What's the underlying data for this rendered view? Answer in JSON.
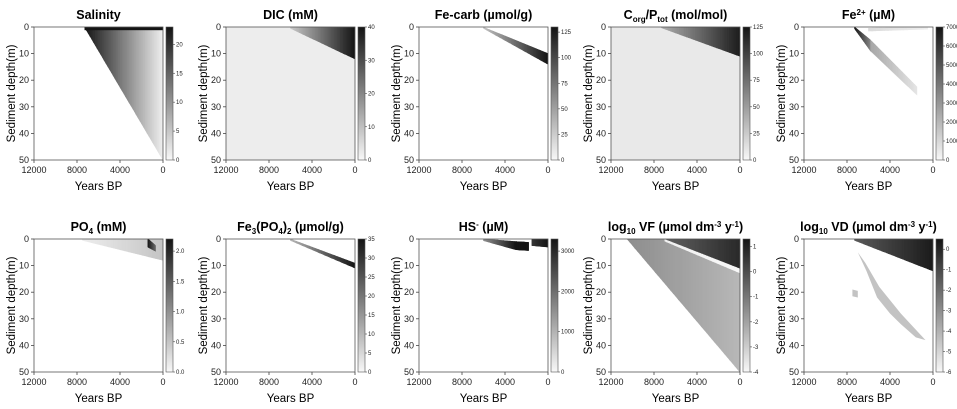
{
  "figure": {
    "xlabel": "Years BP",
    "ylabel": "Sediment depth(m)"
  },
  "chart_data": [
    {
      "type": "heatmap",
      "id": "salinity",
      "title": "Salinity",
      "title_parts": [
        {
          "t": "Salinity"
        }
      ],
      "x": [
        12000,
        8000,
        4000,
        0
      ],
      "xlim": [
        12000,
        0
      ],
      "y": [
        0,
        10,
        20,
        30,
        40,
        50
      ],
      "ylim": [
        50,
        0
      ],
      "colorbar": {
        "ticks": [
          0,
          5,
          10,
          15,
          20
        ],
        "range": [
          0,
          23
        ]
      },
      "features": [
        {
          "kind": "wedge",
          "x0": 7300,
          "x1": 0,
          "ytop0": 0,
          "ybot0": 0,
          "ytop1": 0,
          "ybot1": 50,
          "v0": 23,
          "v1": 1
        },
        {
          "kind": "rect",
          "x0": 7300,
          "x1": 0,
          "y0": 0,
          "y1": 1.2,
          "v": 23
        }
      ]
    },
    {
      "type": "heatmap",
      "id": "dic",
      "title": "DIC (mM)",
      "title_parts": [
        {
          "t": "DIC (mM)"
        }
      ],
      "x": [
        12000,
        8000,
        4000,
        0
      ],
      "xlim": [
        12000,
        0
      ],
      "y": [
        0,
        10,
        20,
        30,
        40,
        50
      ],
      "ylim": [
        50,
        0
      ],
      "colorbar": {
        "ticks": [
          0,
          10,
          20,
          30,
          40
        ],
        "range": [
          0,
          40
        ]
      },
      "features": [
        {
          "kind": "rect",
          "x0": 12000,
          "x1": 0,
          "y0": 0,
          "y1": 50,
          "v": 2
        },
        {
          "kind": "wedge",
          "x0": 6000,
          "x1": 0,
          "ytop0": 0,
          "ybot0": 0.5,
          "ytop1": 0,
          "ybot1": 12,
          "v0": 8,
          "v1": 40
        }
      ]
    },
    {
      "type": "heatmap",
      "id": "fecarb",
      "title": "Fe-carb (µmol/g)",
      "title_parts": [
        {
          "t": "Fe-carb (µmol/g)"
        }
      ],
      "x": [
        12000,
        8000,
        4000,
        0
      ],
      "xlim": [
        12000,
        0
      ],
      "y": [
        0,
        10,
        20,
        30,
        40,
        50
      ],
      "ylim": [
        50,
        0
      ],
      "colorbar": {
        "ticks": [
          0,
          25,
          50,
          75,
          100,
          125
        ],
        "range": [
          0,
          130
        ]
      },
      "features": [
        {
          "kind": "band",
          "x0": 6000,
          "x1": 0,
          "yc0": 0.3,
          "yc1": 12,
          "w0": 0.4,
          "w1": 4,
          "v0": 30,
          "v1": 130
        }
      ]
    },
    {
      "type": "heatmap",
      "id": "corg",
      "title": "Corg/Ptot (mol/mol)",
      "title_parts": [
        {
          "t": "C"
        },
        {
          "t": "org",
          "sub": true
        },
        {
          "t": "/P"
        },
        {
          "t": "tot",
          "sub": true
        },
        {
          "t": " (mol/mol)"
        }
      ],
      "x": [
        12000,
        8000,
        4000,
        0
      ],
      "xlim": [
        12000,
        0
      ],
      "y": [
        0,
        10,
        20,
        30,
        40,
        50
      ],
      "ylim": [
        50,
        0
      ],
      "colorbar": {
        "ticks": [
          0,
          25,
          50,
          75,
          100,
          125
        ],
        "range": [
          0,
          125
        ]
      },
      "features": [
        {
          "kind": "rect",
          "x0": 12000,
          "x1": 0,
          "y0": 0,
          "y1": 50,
          "v": 8
        },
        {
          "kind": "wedge",
          "x0": 7300,
          "x1": 0,
          "ytop0": 0,
          "ybot0": 0.3,
          "ytop1": 0,
          "ybot1": 11,
          "v0": 40,
          "v1": 120
        }
      ]
    },
    {
      "type": "heatmap",
      "id": "fe2",
      "title": "Fe2+ (µM)",
      "title_parts": [
        {
          "t": "Fe"
        },
        {
          "t": "2+",
          "sup": true
        },
        {
          "t": " (µM)"
        }
      ],
      "x": [
        12000,
        8000,
        4000,
        0
      ],
      "xlim": [
        12000,
        0
      ],
      "y": [
        0,
        10,
        20,
        30,
        40,
        50
      ],
      "ylim": [
        50,
        0
      ],
      "colorbar": {
        "ticks": [
          0,
          1000,
          2000,
          3000,
          4000,
          5000,
          6000,
          7000
        ],
        "range": [
          0,
          7000
        ]
      },
      "features": [
        {
          "kind": "band",
          "x0": 7300,
          "x1": 5800,
          "yc0": 0.3,
          "yc1": 7,
          "w0": 0.5,
          "w1": 4,
          "v0": 7000,
          "v1": 3500
        },
        {
          "kind": "band",
          "x0": 5800,
          "x1": 1500,
          "yc0": 7,
          "yc1": 24,
          "w0": 4,
          "w1": 3,
          "v0": 2500,
          "v1": 600
        },
        {
          "kind": "band",
          "x0": 6000,
          "x1": 500,
          "yc0": 1,
          "yc1": 0.4,
          "w0": 1,
          "w1": 0.8,
          "v0": 900,
          "v1": 300
        }
      ]
    },
    {
      "type": "heatmap",
      "id": "po4",
      "title": "PO4 (mM)",
      "title_parts": [
        {
          "t": "PO"
        },
        {
          "t": "4",
          "sub": true
        },
        {
          "t": " (mM)"
        }
      ],
      "x": [
        12000,
        8000,
        4000,
        0
      ],
      "xlim": [
        12000,
        0
      ],
      "y": [
        0,
        10,
        20,
        30,
        40,
        50
      ],
      "ylim": [
        50,
        0
      ],
      "colorbar": {
        "ticks": [
          0.0,
          0.5,
          1.0,
          1.5,
          2.0
        ],
        "range": [
          0,
          2.2
        ]
      },
      "features": [
        {
          "kind": "wedge",
          "x0": 7500,
          "x1": 0,
          "ytop0": 0,
          "ybot0": 0.5,
          "ytop1": 0,
          "ybot1": 8,
          "v0": 0.1,
          "v1": 0.5
        },
        {
          "kind": "band",
          "x0": 1400,
          "x1": 700,
          "yc0": 1.5,
          "yc1": 3.5,
          "w0": 3,
          "w1": 2,
          "v0": 2.2,
          "v1": 1.4
        }
      ]
    },
    {
      "type": "heatmap",
      "id": "fe3po4",
      "title": "Fe3(PO4)2 (µmol/g)",
      "title_parts": [
        {
          "t": "Fe"
        },
        {
          "t": "3",
          "sub": true
        },
        {
          "t": "(PO"
        },
        {
          "t": "4",
          "sub": true
        },
        {
          "t": ")"
        },
        {
          "t": "2",
          "sub": true
        },
        {
          "t": " (µmol/g)"
        }
      ],
      "x": [
        12000,
        8000,
        4000,
        0
      ],
      "xlim": [
        12000,
        0
      ],
      "y": [
        0,
        10,
        20,
        30,
        40,
        50
      ],
      "ylim": [
        50,
        0
      ],
      "colorbar": {
        "ticks": [
          0,
          5,
          10,
          15,
          20,
          25,
          30,
          35
        ],
        "range": [
          0,
          35
        ]
      },
      "features": [
        {
          "kind": "band",
          "x0": 6000,
          "x1": 0,
          "yc0": 0.3,
          "yc1": 10,
          "w0": 0.5,
          "w1": 1.8,
          "v0": 10,
          "v1": 35
        }
      ]
    },
    {
      "type": "heatmap",
      "id": "hs",
      "title": "HS- (µM)",
      "title_parts": [
        {
          "t": "HS"
        },
        {
          "t": "-",
          "sup": true
        },
        {
          "t": " (µM)"
        }
      ],
      "x": [
        12000,
        8000,
        4000,
        0
      ],
      "xlim": [
        12000,
        0
      ],
      "y": [
        0,
        10,
        20,
        30,
        40,
        50
      ],
      "ylim": [
        50,
        0
      ],
      "colorbar": {
        "ticks": [
          0,
          1000,
          2000,
          3000
        ],
        "range": [
          0,
          3300
        ]
      },
      "features": [
        {
          "kind": "band",
          "x0": 6000,
          "x1": 3000,
          "yc0": 0.3,
          "yc1": 2.5,
          "w0": 0.6,
          "w1": 3,
          "v0": 1500,
          "v1": 3300
        },
        {
          "kind": "band",
          "x0": 3000,
          "x1": 1800,
          "yc0": 2.5,
          "yc1": 2.8,
          "w0": 3,
          "w1": 3,
          "v0": 3300,
          "v1": 3300
        },
        {
          "kind": "band",
          "x0": 1500,
          "x1": 0,
          "yc0": 1.2,
          "yc1": 1.5,
          "w0": 2.5,
          "w1": 3,
          "v0": 2800,
          "v1": 3300
        }
      ]
    },
    {
      "type": "heatmap",
      "id": "vf",
      "title": "log10 VF (µmol dm-3 y-1)",
      "title_parts": [
        {
          "t": "log"
        },
        {
          "t": "10",
          "sub": true
        },
        {
          "t": " VF (µmol dm"
        },
        {
          "t": "-3",
          "sup": true
        },
        {
          "t": " y"
        },
        {
          "t": "-1",
          "sup": true
        },
        {
          "t": ")"
        }
      ],
      "x": [
        12000,
        8000,
        4000,
        0
      ],
      "xlim": [
        12000,
        0
      ],
      "y": [
        0,
        10,
        20,
        30,
        40,
        50
      ],
      "ylim": [
        50,
        0
      ],
      "colorbar": {
        "ticks": [
          -4,
          -3,
          -2,
          -1,
          0,
          1
        ],
        "range": [
          -4,
          1.3
        ]
      },
      "features": [
        {
          "kind": "wedge",
          "x0": 10500,
          "x1": 0,
          "ytop0": 0,
          "ybot0": 0,
          "ytop1": 0,
          "ybot1": 50,
          "v0": -1.5,
          "v1": -2.5
        },
        {
          "kind": "wedge",
          "x0": 7000,
          "x1": 0,
          "ytop0": 0,
          "ybot0": 0.5,
          "ytop1": 0,
          "ybot1": 12,
          "v0": -0.5,
          "v1": 0.8
        },
        {
          "kind": "band",
          "x0": 7000,
          "x1": 0,
          "yc0": 0.5,
          "yc1": 12,
          "w0": 0.6,
          "w1": 1.5,
          "v0": -3.8,
          "v1": -4
        }
      ]
    },
    {
      "type": "heatmap",
      "id": "vd",
      "title": "log10 VD (µmol dm-3 y-1)",
      "title_parts": [
        {
          "t": "log"
        },
        {
          "t": "10",
          "sub": true
        },
        {
          "t": " VD (µmol dm"
        },
        {
          "t": "-3",
          "sup": true
        },
        {
          "t": " y"
        },
        {
          "t": "-1",
          "sup": true
        },
        {
          "t": ")"
        }
      ],
      "x": [
        12000,
        8000,
        4000,
        0
      ],
      "xlim": [
        12000,
        0
      ],
      "y": [
        0,
        10,
        20,
        30,
        40,
        50
      ],
      "ylim": [
        50,
        0
      ],
      "colorbar": {
        "ticks": [
          -6,
          -5,
          -4,
          -3,
          -2,
          -1,
          0
        ],
        "range": [
          -6,
          0.5
        ]
      },
      "features": [
        {
          "kind": "wedge",
          "x0": 7300,
          "x1": 0,
          "ytop0": 0,
          "ybot0": 0.5,
          "ytop1": 0,
          "ybot1": 12,
          "v0": -1.5,
          "v1": 0.3
        },
        {
          "kind": "poly",
          "pts": [
            [
              7000,
              5
            ],
            [
              6200,
              12
            ],
            [
              5200,
              22
            ],
            [
              4000,
              28
            ],
            [
              3000,
              32
            ],
            [
              1600,
              37
            ],
            [
              700,
              38
            ],
            [
              3000,
              28
            ],
            [
              5000,
              18
            ],
            [
              6300,
              9
            ]
          ],
          "v": -4.5
        },
        {
          "kind": "poly",
          "pts": [
            [
              7500,
              19
            ],
            [
              7000,
              19.5
            ],
            [
              7000,
              22
            ],
            [
              7500,
              21.5
            ]
          ],
          "v": -4.5
        }
      ]
    }
  ]
}
